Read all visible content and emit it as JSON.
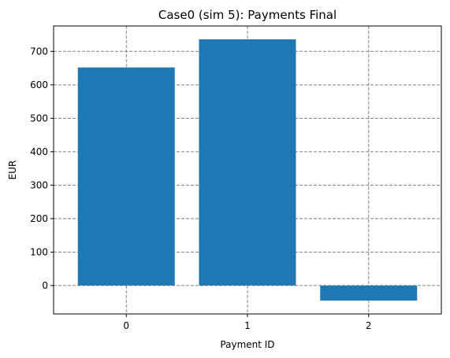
{
  "chart_data": {
    "type": "bar",
    "title": "Case0 (sim 5): Payments Final",
    "xlabel": "Payment ID",
    "ylabel": "EUR",
    "categories": [
      "0",
      "1",
      "2"
    ],
    "values": [
      652,
      736,
      -45
    ],
    "ylim": [
      -85,
      776
    ],
    "yticks": [
      0,
      100,
      200,
      300,
      400,
      500,
      600,
      700
    ],
    "ytick_labels": [
      "0",
      "100",
      "200",
      "300",
      "400",
      "500",
      "600",
      "700"
    ],
    "grid": true,
    "bar_color": "#1f77b4",
    "grid_color": "#808080"
  }
}
